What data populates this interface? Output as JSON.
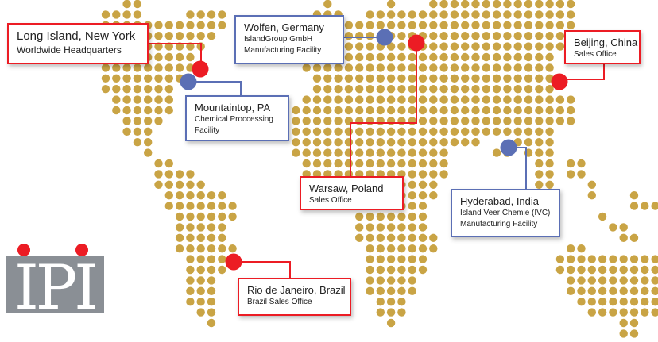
{
  "colors": {
    "land_dot": "#c9a445",
    "headquarters_sales": "#ec1c24",
    "manufacturing": "#5b6fb5",
    "logo_gray": "#8a8f95"
  },
  "logo": {
    "text": "IPI"
  },
  "locations": [
    {
      "id": "long-island",
      "title": "Long Island, New York",
      "lines": [
        "Worldwide Headquarters"
      ],
      "type": "red"
    },
    {
      "id": "mountaintop",
      "title": "Mountaintop, PA",
      "lines": [
        "Chemical Proccessing",
        "Facility"
      ],
      "type": "blue"
    },
    {
      "id": "wolfen",
      "title": "Wolfen, Germany",
      "lines": [
        "IslandGroup GmbH",
        "Manufacturing Facility"
      ],
      "type": "blue"
    },
    {
      "id": "warsaw",
      "title": "Warsaw, Poland",
      "lines": [
        "Sales Office"
      ],
      "type": "red"
    },
    {
      "id": "beijing",
      "title": "Beijing, China",
      "lines": [
        "Sales Office"
      ],
      "type": "red"
    },
    {
      "id": "hyderabad",
      "title": "Hyderabad, India",
      "lines": [
        "Island Veer Chemie (IVC)",
        "Manufacturing Facility"
      ],
      "type": "blue"
    },
    {
      "id": "rio",
      "title": "Rio de Janeiro, Brazil",
      "lines": [
        "Brazil Sales Office"
      ],
      "type": "red"
    }
  ]
}
